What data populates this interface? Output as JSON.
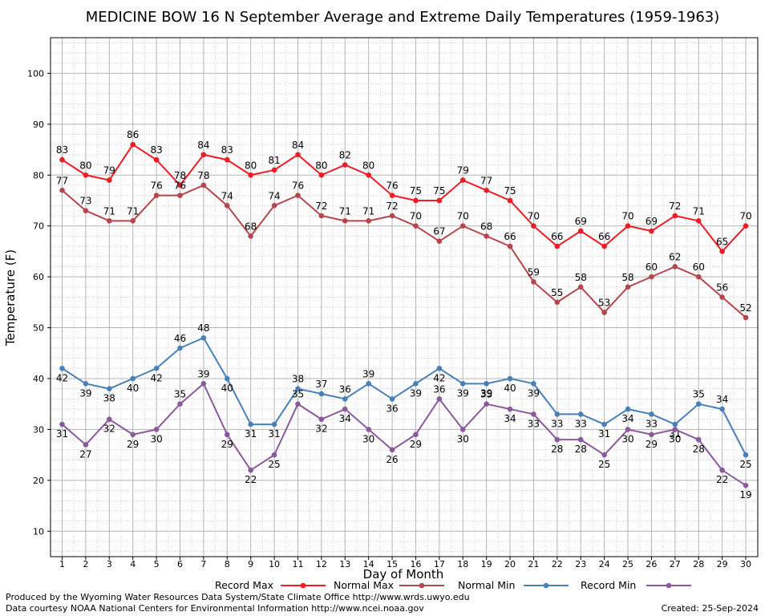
{
  "chart_data": {
    "type": "line",
    "title": "MEDICINE BOW 16 N September Average and Extreme Daily Temperatures (1959-1963)",
    "xlabel": "Day of Month",
    "ylabel": "Temperature (F)",
    "ylim": [
      5,
      107
    ],
    "y_ticks": [
      10,
      20,
      30,
      40,
      50,
      60,
      70,
      80,
      90,
      100
    ],
    "x": [
      1,
      2,
      3,
      4,
      5,
      6,
      7,
      8,
      9,
      10,
      11,
      12,
      13,
      14,
      15,
      16,
      17,
      18,
      19,
      20,
      21,
      22,
      23,
      24,
      25,
      26,
      27,
      28,
      29,
      30
    ],
    "grid": true,
    "legend_position": "bottom",
    "series": [
      {
        "name": "Record Max",
        "color": "#ee1c24",
        "values": [
          83,
          80,
          79,
          86,
          83,
          78,
          84,
          83,
          80,
          81,
          84,
          80,
          82,
          80,
          76,
          75,
          75,
          79,
          77,
          75,
          70,
          66,
          69,
          66,
          70,
          69,
          72,
          71,
          65,
          70
        ]
      },
      {
        "name": "Normal Max",
        "color": "#b5464c",
        "values": [
          77,
          73,
          71,
          71,
          76,
          76,
          78,
          74,
          68,
          74,
          76,
          72,
          71,
          71,
          72,
          70,
          67,
          70,
          68,
          66,
          59,
          55,
          58,
          53,
          58,
          60,
          62,
          60,
          56,
          52
        ]
      },
      {
        "name": "Normal Min",
        "color": "#4a80b8",
        "values": [
          42,
          39,
          38,
          40,
          42,
          46,
          48,
          40,
          31,
          31,
          38,
          37,
          36,
          39,
          36,
          39,
          42,
          39,
          39,
          40,
          39,
          33,
          33,
          31,
          34,
          33,
          31,
          35,
          34,
          25
        ]
      },
      {
        "name": "Record Min",
        "color": "#8a5a9c",
        "values": [
          31,
          27,
          32,
          29,
          30,
          35,
          39,
          29,
          22,
          25,
          35,
          32,
          34,
          30,
          26,
          29,
          36,
          30,
          35,
          34,
          33,
          28,
          28,
          25,
          30,
          29,
          30,
          28,
          22,
          19
        ]
      }
    ]
  },
  "footer": {
    "produced_by": "Produced by the Wyoming Water Resources Data System/State Climate Office http://www.wrds.uwyo.edu",
    "courtesy": "Data courtesy NOAA National Centers for Environmental Information http://www.ncei.noaa.gov",
    "created": "Created:  25-Sep-2024"
  }
}
